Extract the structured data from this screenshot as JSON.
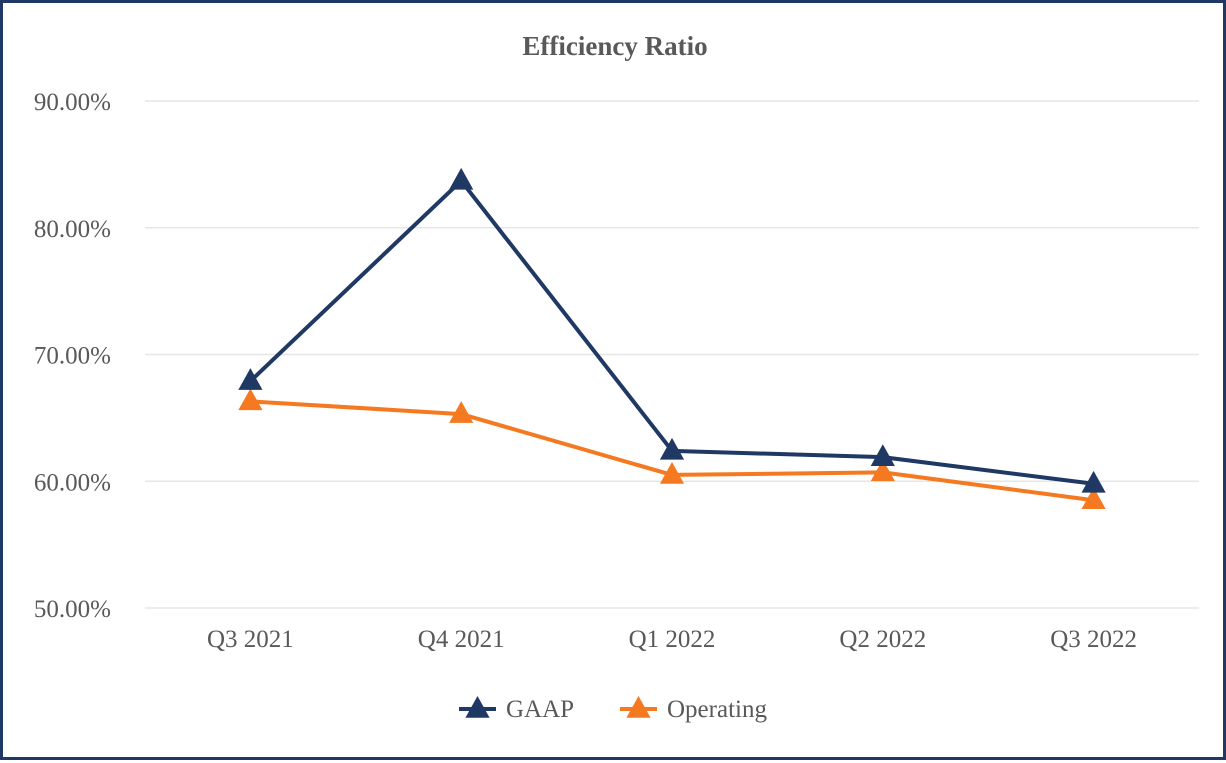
{
  "chart_data": {
    "type": "line",
    "title": "Efficiency Ratio",
    "xlabel": "",
    "ylabel": "",
    "categories": [
      "Q3 2021",
      "Q4 2021",
      "Q1 2022",
      "Q2 2022",
      "Q3 2022"
    ],
    "ylim": [
      50,
      90
    ],
    "yticks": [
      50,
      60,
      70,
      80,
      90
    ],
    "ytick_labels": [
      "50.00%",
      "60.00%",
      "70.00%",
      "80.00%",
      "90.00%"
    ],
    "grid": true,
    "legend_position": "bottom-center",
    "series": [
      {
        "name": "GAAP",
        "color": "#1f3864",
        "marker": "triangle",
        "values": [
          67.9,
          83.7,
          62.4,
          61.9,
          59.8
        ]
      },
      {
        "name": "Operating",
        "color": "#f47920",
        "marker": "triangle",
        "values": [
          66.3,
          65.3,
          60.5,
          60.7,
          58.5
        ]
      }
    ]
  }
}
